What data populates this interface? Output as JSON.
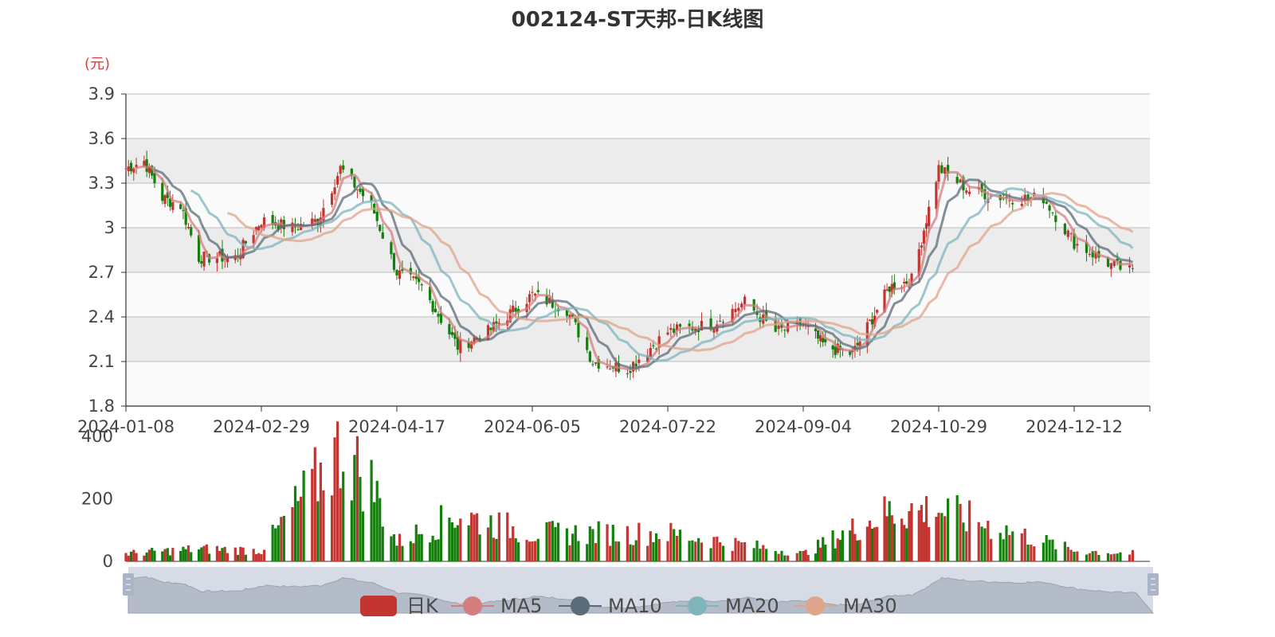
{
  "title": "002124-ST天邦-日K线图",
  "colors": {
    "up": "#c23531",
    "down": "#14800c",
    "ma5": "#d47d7f",
    "ma10": "#5b6b78",
    "ma20": "#7fb4bd",
    "ma30": "#e0a48c",
    "band_light": "#fafafa",
    "band_dark": "#ececec"
  },
  "chart_data": [
    {
      "type": "candlestick",
      "name": "price",
      "ylabel": "(元)",
      "ylim": [
        1.8,
        3.9
      ],
      "y_ticks": [
        "1.8",
        "2.1",
        "2.4",
        "2.7",
        "3",
        "3.3",
        "3.6",
        "3.9"
      ],
      "x_ticks": [
        "2024-01-08",
        "2024-02-29",
        "2024-04-17",
        "2024-06-05",
        "2024-07-22",
        "2024-09-04",
        "2024-10-29",
        "2024-12-12"
      ],
      "legend": [
        "日K",
        "MA5",
        "MA10",
        "MA20",
        "MA30"
      ],
      "approx_close_by_period": [
        {
          "date": "2024-01-08",
          "close": 3.4
        },
        {
          "date": "2024-01-15",
          "close": 3.45
        },
        {
          "date": "2024-01-22",
          "close": 3.2
        },
        {
          "date": "2024-01-29",
          "close": 3.15
        },
        {
          "date": "2024-02-05",
          "close": 2.8
        },
        {
          "date": "2024-02-19",
          "close": 2.8
        },
        {
          "date": "2024-02-29",
          "close": 3.05
        },
        {
          "date": "2024-03-11",
          "close": 3.0
        },
        {
          "date": "2024-03-20",
          "close": 3.05
        },
        {
          "date": "2024-03-28",
          "close": 3.4
        },
        {
          "date": "2024-04-08",
          "close": 3.15
        },
        {
          "date": "2024-04-17",
          "close": 2.7
        },
        {
          "date": "2024-04-26",
          "close": 2.6
        },
        {
          "date": "2024-05-09",
          "close": 2.2
        },
        {
          "date": "2024-05-20",
          "close": 2.3
        },
        {
          "date": "2024-06-05",
          "close": 2.55
        },
        {
          "date": "2024-06-17",
          "close": 2.45
        },
        {
          "date": "2024-06-26",
          "close": 2.1
        },
        {
          "date": "2024-07-08",
          "close": 2.05
        },
        {
          "date": "2024-07-22",
          "close": 2.3
        },
        {
          "date": "2024-08-05",
          "close": 2.35
        },
        {
          "date": "2024-08-16",
          "close": 2.5
        },
        {
          "date": "2024-08-26",
          "close": 2.3
        },
        {
          "date": "2024-09-04",
          "close": 2.35
        },
        {
          "date": "2024-09-13",
          "close": 2.2
        },
        {
          "date": "2024-09-24",
          "close": 2.15
        },
        {
          "date": "2024-10-09",
          "close": 2.6
        },
        {
          "date": "2024-10-18",
          "close": 2.65
        },
        {
          "date": "2024-10-29",
          "close": 3.4
        },
        {
          "date": "2024-11-08",
          "close": 3.25
        },
        {
          "date": "2024-11-20",
          "close": 3.2
        },
        {
          "date": "2024-12-02",
          "close": 3.2
        },
        {
          "date": "2024-12-12",
          "close": 2.9
        },
        {
          "date": "2024-12-24",
          "close": 2.75
        },
        {
          "date": "2024-12-31",
          "close": 2.7
        }
      ]
    },
    {
      "type": "bar",
      "name": "volume",
      "ylim": [
        0,
        400
      ],
      "y_ticks": [
        "0",
        "200",
        "400"
      ],
      "approx_volume_by_period": [
        {
          "date": "2024-01-08",
          "volume": 25
        },
        {
          "date": "2024-02-05",
          "volume": 40
        },
        {
          "date": "2024-02-29",
          "volume": 35
        },
        {
          "date": "2024-03-28",
          "volume": 360
        },
        {
          "date": "2024-04-08",
          "volume": 250
        },
        {
          "date": "2024-04-17",
          "volume": 60
        },
        {
          "date": "2024-05-09",
          "volume": 150
        },
        {
          "date": "2024-06-05",
          "volume": 90
        },
        {
          "date": "2024-07-22",
          "volume": 90
        },
        {
          "date": "2024-09-04",
          "volume": 25
        },
        {
          "date": "2024-10-09",
          "volume": 160
        },
        {
          "date": "2024-10-29",
          "volume": 165
        },
        {
          "date": "2024-12-12",
          "volume": 35
        },
        {
          "date": "2024-12-31",
          "volume": 25
        }
      ]
    }
  ]
}
